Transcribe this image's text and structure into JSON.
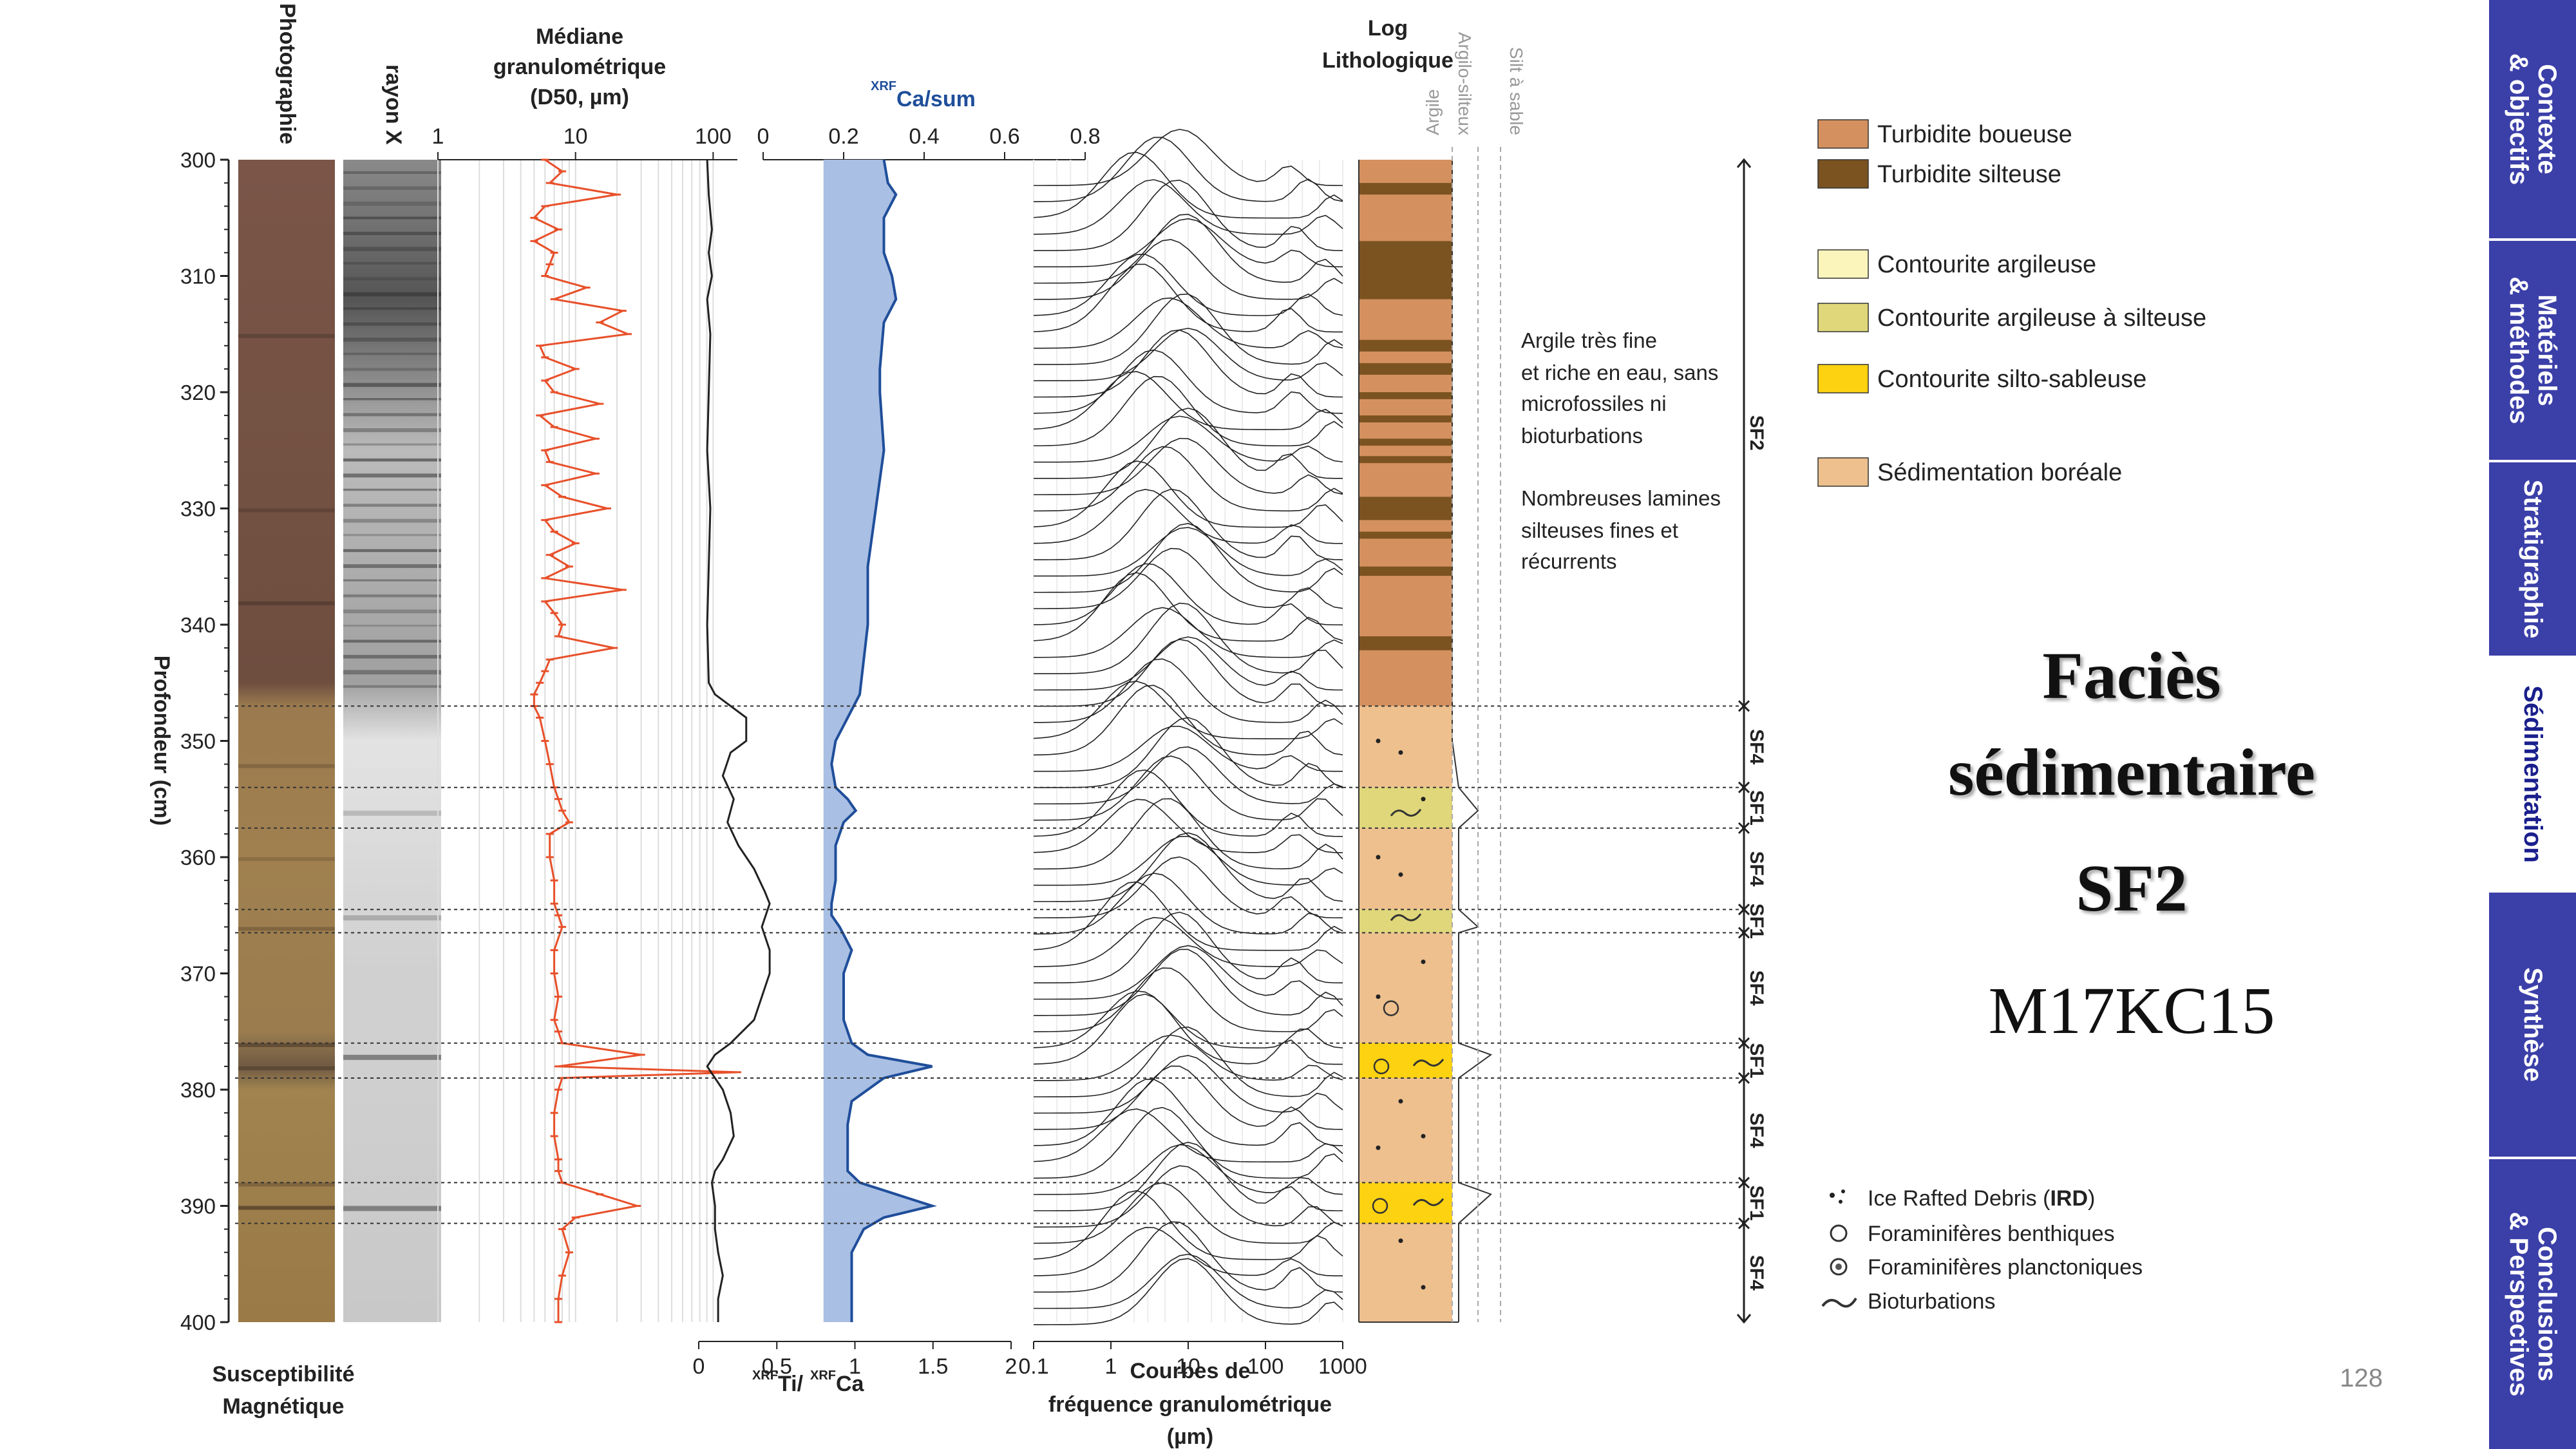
{
  "slide": {
    "title_lines": [
      "Faciès",
      "sédimentaire",
      "SF2"
    ],
    "core_name": "M17KC15",
    "page_number": "128"
  },
  "nav_tabs": [
    {
      "label": "Contexte\n& objectifs",
      "active": false
    },
    {
      "label": "Matériels\n& méthodes",
      "active": false
    },
    {
      "label": "Stratigraphie",
      "active": false
    },
    {
      "label": "Sédimentation",
      "active": true
    },
    {
      "label": "Synthèse",
      "active": false
    },
    {
      "label": "Conclusions\n& Perspectives",
      "active": false
    }
  ],
  "column_headers": {
    "photo": "Photographie",
    "xray": "rayon X",
    "d50": [
      "Médiane",
      "granulométrique",
      "(D50, µm)"
    ],
    "ca": "Ca/sum",
    "ca_sup": "XRF",
    "log": [
      "Log",
      "Lithologique"
    ],
    "grain_scale": [
      "Argile",
      "Argilo-silteux",
      "Silt à sable"
    ]
  },
  "bottom_labels": {
    "susceptibility": [
      "Susceptibilité",
      "Magnétique"
    ],
    "ti_ca": "Ti/",
    "ti_ca_tail": "Ca",
    "ti_ca_sup": "XRF",
    "curves": [
      "Courbes de",
      "fréquence granulométrique",
      "(µm)"
    ]
  },
  "colors": {
    "d50_curve": "#e8502a",
    "ca_fill": "#a9bfe3",
    "ca_line": "#1f4e9a",
    "ca_header": "#1f4e9a",
    "turbidite_boueuse": "#d4915f",
    "turbidite_silteuse": "#7b5321",
    "contourite_argileuse": "#fbf5bb",
    "contourite_argileuse_silteuse": "#dfd77a",
    "contourite_silto_sableuse": "#fcd211",
    "sedimentation_boreale": "#edc08e",
    "nav_tab": "#3b3fa8"
  },
  "chart_data": {
    "type": "line",
    "ylabel": "Profondeur (cm)",
    "depth_ticks": [
      300,
      310,
      320,
      330,
      340,
      350,
      360,
      370,
      380,
      390,
      400
    ],
    "ylim": [
      300,
      400
    ],
    "d50": {
      "axis_ticks": [
        "1",
        "10",
        "100"
      ],
      "xlim": [
        1,
        150
      ],
      "scale": "log",
      "points": [
        [
          300,
          6
        ],
        [
          301,
          8
        ],
        [
          302,
          6.5
        ],
        [
          303,
          20
        ],
        [
          304,
          6
        ],
        [
          305,
          5
        ],
        [
          306,
          7.5
        ],
        [
          307,
          5
        ],
        [
          308,
          7
        ],
        [
          309,
          6.5
        ],
        [
          310,
          6
        ],
        [
          311,
          12
        ],
        [
          312,
          7
        ],
        [
          313,
          22
        ],
        [
          314,
          15
        ],
        [
          315,
          24
        ],
        [
          316,
          5.5
        ],
        [
          317,
          6
        ],
        [
          318,
          10
        ],
        [
          319,
          6
        ],
        [
          320,
          7
        ],
        [
          321,
          15
        ],
        [
          322,
          5.5
        ],
        [
          323,
          7
        ],
        [
          324,
          14
        ],
        [
          325,
          6
        ],
        [
          326,
          6.5
        ],
        [
          327,
          14
        ],
        [
          328,
          6
        ],
        [
          329,
          8
        ],
        [
          330,
          17
        ],
        [
          331,
          6
        ],
        [
          332,
          7
        ],
        [
          333,
          10
        ],
        [
          334,
          6.5
        ],
        [
          335,
          9
        ],
        [
          336,
          6
        ],
        [
          337,
          22
        ],
        [
          338,
          6
        ],
        [
          339,
          7
        ],
        [
          340,
          8
        ],
        [
          341,
          7.5
        ],
        [
          342,
          19
        ],
        [
          343,
          6.5
        ],
        [
          344,
          6
        ],
        [
          345,
          5.5
        ],
        [
          346,
          5
        ],
        [
          347,
          5
        ],
        [
          348,
          5.5
        ],
        [
          350,
          6
        ],
        [
          352,
          6.5
        ],
        [
          354,
          7
        ],
        [
          355,
          7.5
        ],
        [
          356,
          8
        ],
        [
          357,
          9
        ],
        [
          358,
          6.5
        ],
        [
          360,
          6.5
        ],
        [
          362,
          7
        ],
        [
          364,
          7
        ],
        [
          365,
          7.5
        ],
        [
          366,
          8
        ],
        [
          368,
          7
        ],
        [
          370,
          7
        ],
        [
          372,
          7.5
        ],
        [
          374,
          7
        ],
        [
          375,
          7.5
        ],
        [
          376,
          8
        ],
        [
          377,
          30
        ],
        [
          378,
          7.5
        ],
        [
          378.5,
          150
        ],
        [
          379,
          8
        ],
        [
          380,
          7.5
        ],
        [
          382,
          7
        ],
        [
          384,
          7
        ],
        [
          386,
          7.5
        ],
        [
          387,
          7.5
        ],
        [
          388,
          8
        ],
        [
          389,
          15
        ],
        [
          390,
          28
        ],
        [
          391,
          10
        ],
        [
          392,
          8
        ],
        [
          394,
          9
        ],
        [
          396,
          8
        ],
        [
          398,
          7.5
        ],
        [
          400,
          7.5
        ]
      ]
    },
    "susceptibility": {
      "axis_ticks": [
        "0",
        "0.5",
        "1",
        "1.5",
        "2"
      ],
      "xlim": [
        0,
        2
      ],
      "points": [
        [
          300,
          0.05
        ],
        [
          303,
          0.06
        ],
        [
          306,
          0.08
        ],
        [
          308,
          0.06
        ],
        [
          310,
          0.08
        ],
        [
          312,
          0.05
        ],
        [
          315,
          0.07
        ],
        [
          320,
          0.06
        ],
        [
          325,
          0.05
        ],
        [
          330,
          0.07
        ],
        [
          335,
          0.06
        ],
        [
          340,
          0.05
        ],
        [
          345,
          0.06
        ],
        [
          346,
          0.1
        ],
        [
          348,
          0.3
        ],
        [
          350,
          0.3
        ],
        [
          351,
          0.2
        ],
        [
          353,
          0.15
        ],
        [
          355,
          0.22
        ],
        [
          357,
          0.18
        ],
        [
          359,
          0.25
        ],
        [
          361,
          0.35
        ],
        [
          363,
          0.42
        ],
        [
          364,
          0.45
        ],
        [
          366,
          0.4
        ],
        [
          368,
          0.45
        ],
        [
          370,
          0.45
        ],
        [
          372,
          0.4
        ],
        [
          374,
          0.35
        ],
        [
          376,
          0.2
        ],
        [
          377,
          0.1
        ],
        [
          378,
          0.05
        ],
        [
          379,
          0.1
        ],
        [
          380,
          0.15
        ],
        [
          382,
          0.2
        ],
        [
          384,
          0.22
        ],
        [
          386,
          0.15
        ],
        [
          387,
          0.1
        ],
        [
          388,
          0.08
        ],
        [
          390,
          0.1
        ],
        [
          392,
          0.1
        ],
        [
          394,
          0.12
        ],
        [
          396,
          0.15
        ],
        [
          398,
          0.12
        ],
        [
          400,
          0.12
        ]
      ]
    },
    "xrf_ca": {
      "axis_ticks": [
        "0",
        "0.2",
        "0.4",
        "0.6",
        "0.8"
      ],
      "xlim": [
        0,
        0.8
      ],
      "points": [
        [
          300,
          0.3
        ],
        [
          302,
          0.31
        ],
        [
          303,
          0.33
        ],
        [
          305,
          0.3
        ],
        [
          308,
          0.3
        ],
        [
          310,
          0.32
        ],
        [
          312,
          0.33
        ],
        [
          314,
          0.3
        ],
        [
          318,
          0.29
        ],
        [
          320,
          0.29
        ],
        [
          325,
          0.3
        ],
        [
          330,
          0.28
        ],
        [
          335,
          0.26
        ],
        [
          340,
          0.26
        ],
        [
          343,
          0.25
        ],
        [
          346,
          0.24
        ],
        [
          348,
          0.21
        ],
        [
          350,
          0.18
        ],
        [
          352,
          0.17
        ],
        [
          354,
          0.18
        ],
        [
          355,
          0.21
        ],
        [
          356,
          0.23
        ],
        [
          357,
          0.2
        ],
        [
          359,
          0.18
        ],
        [
          362,
          0.18
        ],
        [
          364,
          0.17
        ],
        [
          365,
          0.17
        ],
        [
          366,
          0.19
        ],
        [
          368,
          0.22
        ],
        [
          370,
          0.2
        ],
        [
          372,
          0.2
        ],
        [
          374,
          0.2
        ],
        [
          375,
          0.21
        ],
        [
          376,
          0.22
        ],
        [
          377,
          0.26
        ],
        [
          378,
          0.42
        ],
        [
          379,
          0.3
        ],
        [
          381,
          0.22
        ],
        [
          383,
          0.21
        ],
        [
          385,
          0.21
        ],
        [
          387,
          0.21
        ],
        [
          388,
          0.24
        ],
        [
          389,
          0.33
        ],
        [
          390,
          0.42
        ],
        [
          391,
          0.3
        ],
        [
          392,
          0.25
        ],
        [
          394,
          0.22
        ],
        [
          396,
          0.22
        ],
        [
          398,
          0.22
        ],
        [
          400,
          0.22
        ]
      ]
    },
    "grain_curves": {
      "axis_ticks": [
        "0.1",
        "1",
        "10",
        "100",
        "1000"
      ],
      "xlim": [
        0.1,
        1000
      ],
      "scale": "log"
    },
    "units": [
      {
        "label": "SF2",
        "top": 300,
        "bottom": 347
      },
      {
        "label": "SF4",
        "top": 347,
        "bottom": 354
      },
      {
        "label": "SF1",
        "top": 354,
        "bottom": 357.5
      },
      {
        "label": "SF4",
        "top": 357.5,
        "bottom": 364.5
      },
      {
        "label": "SF1",
        "top": 364.5,
        "bottom": 366.5
      },
      {
        "label": "SF4",
        "top": 366.5,
        "bottom": 376
      },
      {
        "label": "SF1",
        "top": 376,
        "bottom": 379
      },
      {
        "label": "SF4",
        "top": 379,
        "bottom": 388
      },
      {
        "label": "SF1",
        "top": 388,
        "bottom": 391.5
      },
      {
        "label": "SF4",
        "top": 391.5,
        "bottom": 400
      }
    ]
  },
  "annotations": [
    {
      "lines": [
        "Argile très fine",
        "et riche en eau, sans",
        "microfossiles ni",
        "bioturbations"
      ]
    },
    {
      "lines": [
        "Nombreuses lamines",
        "silteuses fines et",
        "récurrents"
      ]
    }
  ],
  "legend": [
    {
      "label": "Turbidite boueuse",
      "color": "#d4915f"
    },
    {
      "label": "Turbidite silteuse",
      "color": "#7b5321"
    },
    {
      "label": "Contourite argileuse",
      "color": "#fbf5bb"
    },
    {
      "label": "Contourite argileuse à silteuse",
      "color": "#dfd77a"
    },
    {
      "label": "Contourite silto-sableuse",
      "color": "#fcd211"
    },
    {
      "label": "Sédimentation boréale",
      "color": "#edc08e"
    }
  ],
  "symbol_legend": [
    {
      "label": "Ice Rafted Debris (",
      "bold": "IRD",
      "tail": ")",
      "icon": "ird-icon"
    },
    {
      "label": "Foraminifères benthiques",
      "icon": "benthic-foram-icon"
    },
    {
      "label": "Foraminifères planctoniques",
      "icon": "planktonic-foram-icon"
    },
    {
      "label": "Bioturbations",
      "icon": "bioturbation-icon"
    }
  ]
}
